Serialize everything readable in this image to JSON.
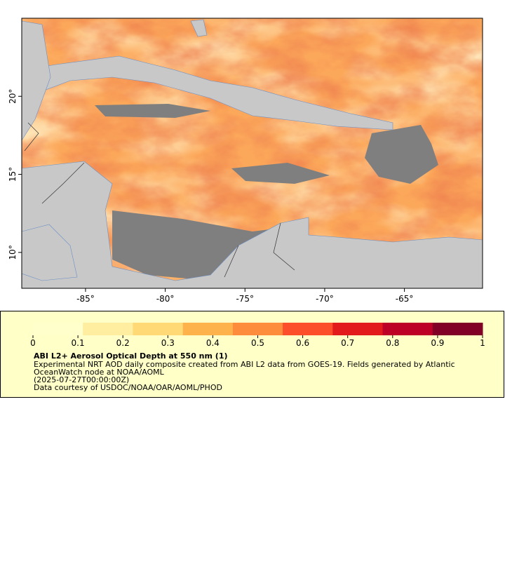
{
  "map": {
    "xlim": [
      -89,
      -60.1
    ],
    "ylim": [
      7.7,
      25
    ],
    "xticks": [
      {
        "value": -85,
        "label": "-85°"
      },
      {
        "value": -80,
        "label": "-80°"
      },
      {
        "value": -75,
        "label": "-75°"
      },
      {
        "value": -70,
        "label": "-70°"
      },
      {
        "value": -65,
        "label": "-65°"
      }
    ],
    "yticks": [
      {
        "value": 10,
        "label": "10°"
      },
      {
        "value": 15,
        "label": "15°"
      },
      {
        "value": 20,
        "label": "20°"
      }
    ]
  },
  "colorbar": {
    "lim": [
      0,
      1
    ],
    "ticks": [
      0,
      0.1,
      0.2,
      0.3,
      0.4,
      0.5,
      0.6,
      0.7,
      0.8,
      0.9,
      1
    ],
    "colors": [
      "#ffffcc",
      "#ffeda0",
      "#fed976",
      "#feb24c",
      "#fd8d3c",
      "#fc4e2a",
      "#e31a1c",
      "#bd0026",
      "#800026"
    ]
  },
  "caption": {
    "title": "ABI L2+ Aerosol Optical Depth at 550 nm (1)",
    "lines": [
      "Experimental NRT AOD daily composite created from ABI L2 data from GOES-19. Fields generated by Atlantic",
      "OceanWatch node at NOAA/AOML",
      "(2025-07-27T00:00:00Z)",
      "Data courtesy of USDOC/NOAA/OAR/AOML/PHOD"
    ]
  }
}
